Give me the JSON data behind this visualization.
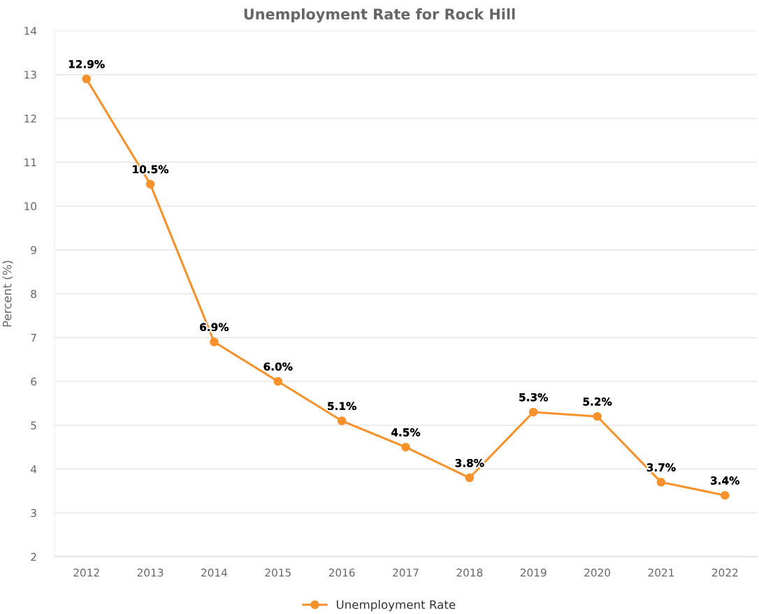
{
  "chart_data": {
    "type": "line",
    "title": "Unemployment Rate for Rock Hill",
    "ylabel": "Percent (%)",
    "categories": [
      "2012",
      "2013",
      "2014",
      "2015",
      "2016",
      "2017",
      "2018",
      "2019",
      "2020",
      "2021",
      "2022"
    ],
    "series": [
      {
        "name": "Unemployment Rate",
        "color": "#f7912b",
        "values": [
          12.9,
          10.5,
          6.9,
          6.0,
          5.1,
          4.5,
          3.8,
          5.3,
          5.2,
          3.7,
          3.4
        ],
        "value_labels": [
          "12.9%",
          "10.5%",
          "6.9%",
          "6.0%",
          "5.1%",
          "4.5%",
          "3.8%",
          "5.3%",
          "5.2%",
          "3.7%",
          "3.4%"
        ]
      }
    ],
    "ylim": [
      2,
      14
    ],
    "yticks": [
      2,
      3,
      4,
      5,
      6,
      7,
      8,
      9,
      10,
      11,
      12,
      13,
      14
    ],
    "grid": "y",
    "legend": "bottom",
    "marker": "circle",
    "line_style": "solid"
  }
}
